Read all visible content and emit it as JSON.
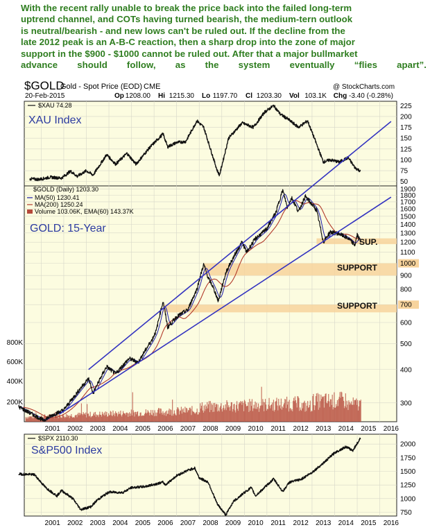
{
  "commentary": [
    "With the recent rally unable to break the price back into the failed long-term",
    "uptrend channel, and COTs having turned bearish, the medium-tern outlook",
    "is neutral/bearish - and new lows can't be ruled out. If the decline from the",
    "late 2012 peak is an A-B-C reaction, then a sharp drop into the zone of major",
    "support in the $900 - $1000 cannot be ruled out. After that a major bullmarket",
    "advance should follow, as the system eventually “flies apart”."
  ],
  "header": {
    "symbol": "$GOLD",
    "name": "Gold - Spot Price (EOD)",
    "exchange": "CME",
    "watermark": "@ StockCharts.com",
    "date": "20-Feb-2015",
    "ohlc": [
      {
        "label": "Op",
        "value": "1208.00"
      },
      {
        "label": "Hi",
        "value": "1215.30"
      },
      {
        "label": "Lo",
        "value": "1197.70"
      },
      {
        "label": "Cl",
        "value": "1203.30"
      },
      {
        "label": "Vol",
        "value": "103.1K"
      },
      {
        "label": "Chg",
        "value": "-3.40 (-0.28%)"
      }
    ]
  },
  "colors": {
    "plot_bg": "#fcfce0",
    "price": "#111111",
    "ma50": "#1a1aa8",
    "ma200": "#b23a2a",
    "trendline": "#3232c0",
    "support_zone": "#f7d39c",
    "volume": "#b5493b",
    "label_blue": "#2b3aa0",
    "commentary_green": "#2e7d1f"
  },
  "chart_data": [
    {
      "type": "line",
      "id": "xau",
      "legend": "$XAU 74.28",
      "label": "XAU Index",
      "y_ticks": [
        50,
        75,
        100,
        125,
        150,
        175,
        200,
        225
      ],
      "ylim": [
        40,
        235
      ],
      "x": [
        2000.5,
        2000.9,
        2001.4,
        2001.9,
        2002.3,
        2002.6,
        2003.0,
        2003.3,
        2003.9,
        2004.3,
        2004.8,
        2005.2,
        2005.8,
        2006.4,
        2006.6,
        2007.0,
        2007.4,
        2007.9,
        2008.2,
        2008.8,
        2008.9,
        2009.3,
        2009.9,
        2010.4,
        2010.9,
        2011.3,
        2011.6,
        2011.9,
        2012.4,
        2012.8,
        2013.1,
        2013.5,
        2013.8,
        2014.2,
        2014.6,
        2014.9,
        2015.15
      ],
      "y": [
        56,
        55,
        60,
        58,
        74,
        62,
        75,
        65,
        112,
        90,
        115,
        90,
        128,
        160,
        130,
        140,
        142,
        190,
        175,
        75,
        65,
        150,
        185,
        175,
        210,
        225,
        205,
        195,
        175,
        190,
        150,
        95,
        100,
        95,
        105,
        82,
        74
      ]
    },
    {
      "type": "line",
      "id": "gold",
      "legend": "$GOLD (Daily) 1203.30",
      "label": "GOLD: 15-Year",
      "log_scale": true,
      "series": [
        {
          "name": "MA(50) 1230.41"
        },
        {
          "name": "MA(200) 1250.24"
        },
        {
          "name": "Volume 103.06K, EMA(60) 143.37K"
        }
      ],
      "y_ticks": [
        300,
        400,
        500,
        600,
        700,
        800,
        900,
        1000,
        1100,
        1200,
        1300,
        1400,
        1500,
        1600,
        1700,
        1800,
        1900
      ],
      "y_ticks_highlighted": [
        700,
        1000
      ],
      "volume_ticks": [
        "200K",
        "400K",
        "600K",
        "800K"
      ],
      "ylim": [
        255,
        1950
      ],
      "x": [
        2000.0,
        2000.5,
        2001.1,
        2001.5,
        2002.0,
        2002.5,
        2003.1,
        2003.3,
        2003.9,
        2004.3,
        2004.9,
        2005.3,
        2005.9,
        2006.1,
        2006.4,
        2006.6,
        2007.0,
        2007.5,
        2007.9,
        2008.2,
        2008.4,
        2008.6,
        2008.85,
        2009.2,
        2009.9,
        2010.1,
        2010.5,
        2010.8,
        2011.0,
        2011.4,
        2011.7,
        2011.9,
        2012.1,
        2012.4,
        2012.7,
        2012.9,
        2013.2,
        2013.35,
        2013.5,
        2013.8,
        2014.2,
        2014.6,
        2014.9,
        2015.0,
        2015.15
      ],
      "y": [
        290,
        275,
        258,
        270,
        282,
        320,
        370,
        325,
        410,
        385,
        440,
        425,
        515,
        560,
        720,
        575,
        630,
        670,
        800,
        990,
        880,
        820,
        720,
        930,
        1200,
        1100,
        1240,
        1300,
        1350,
        1550,
        1880,
        1620,
        1760,
        1560,
        1780,
        1700,
        1580,
        1380,
        1200,
        1310,
        1290,
        1240,
        1170,
        1280,
        1203
      ]
    },
    {
      "type": "line",
      "id": "spx",
      "legend": "$SPX 2110.30",
      "label": "S&P500 Index",
      "y_ticks": [
        750,
        1000,
        1250,
        1500,
        1750,
        2000
      ],
      "ylim": [
        680,
        2180
      ],
      "x": [
        2000.0,
        2000.7,
        2001.2,
        2001.7,
        2001.9,
        2002.4,
        2002.75,
        2003.2,
        2003.5,
        2004.0,
        2004.6,
        2005.0,
        2005.6,
        2006.4,
        2006.5,
        2007.0,
        2007.5,
        2007.8,
        2008.0,
        2008.4,
        2008.8,
        2009.18,
        2009.5,
        2010.0,
        2010.3,
        2010.5,
        2011.3,
        2011.7,
        2012.0,
        2012.5,
        2013.0,
        2013.5,
        2014.0,
        2014.5,
        2014.8,
        2015.15
      ],
      "y": [
        1450,
        1440,
        1200,
        1050,
        1150,
        1000,
        800,
        850,
        980,
        1120,
        1110,
        1200,
        1220,
        1300,
        1250,
        1420,
        1520,
        1560,
        1380,
        1300,
        900,
        700,
        940,
        1110,
        1200,
        1050,
        1360,
        1130,
        1300,
        1350,
        1480,
        1650,
        1840,
        1950,
        1880,
        2110
      ]
    }
  ],
  "x_axis": {
    "years": [
      "2001",
      "2002",
      "2003",
      "2004",
      "2005",
      "2006",
      "2007",
      "2008",
      "2009",
      "2010",
      "2011",
      "2012",
      "2013",
      "2014",
      "2015",
      "2016"
    ]
  },
  "support": {
    "sup_label": "SUP.",
    "support_label_1": "SUPPORT",
    "support_label_2": "SUPPORT",
    "zones": [
      {
        "name": "sup",
        "low": 1180,
        "high": 1240
      },
      {
        "name": "major",
        "low": 900,
        "high": 1000
      },
      {
        "name": "lower",
        "low": 655,
        "high": 700
      }
    ]
  },
  "trendlines": [
    {
      "name": "channel-upper",
      "x": [
        2003.1,
        2016.5
      ],
      "y": [
        400,
        3400
      ]
    },
    {
      "name": "channel-lower",
      "x": [
        2001.8,
        2016.5
      ],
      "y": [
        272,
        1770
      ]
    }
  ]
}
